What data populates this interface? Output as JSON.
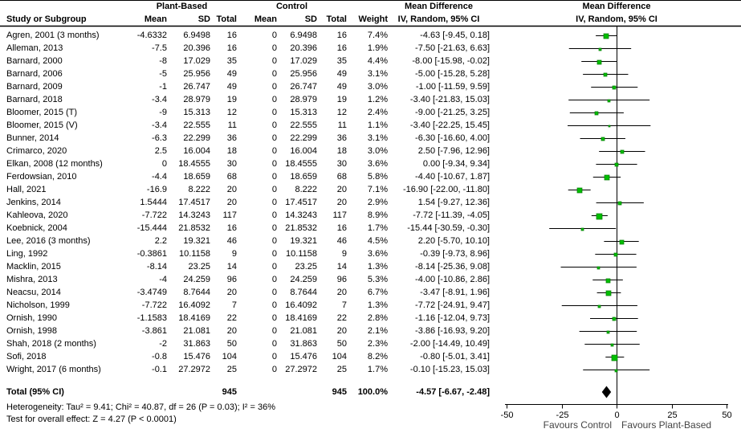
{
  "chart_data": {
    "type": "forest_plot",
    "effect_measure": "Mean Difference",
    "method": "IV, Random, 95% CI",
    "group1": "Plant-Based",
    "group2": "Control",
    "columns": [
      "Study or Subgroup",
      "Mean",
      "SD",
      "Total",
      "Mean",
      "SD",
      "Total",
      "Weight",
      "IV, Random, 95% CI"
    ],
    "studies": [
      {
        "name": "Agren, 2001 (3 months)",
        "mean1": "-4.6332",
        "sd1": "6.9498",
        "total1": "16",
        "mean2": "0",
        "sd2": "6.9498",
        "total2": "16",
        "weight": "7.4%",
        "ci_text": "-4.63 [-9.45, 0.18]",
        "md": -4.63,
        "lo": -9.45,
        "hi": 0.18,
        "weight_pct": 7.4
      },
      {
        "name": "Alleman, 2013",
        "mean1": "-7.5",
        "sd1": "20.396",
        "total1": "16",
        "mean2": "0",
        "sd2": "20.396",
        "total2": "16",
        "weight": "1.9%",
        "ci_text": "-7.50 [-21.63, 6.63]",
        "md": -7.5,
        "lo": -21.63,
        "hi": 6.63,
        "weight_pct": 1.9
      },
      {
        "name": "Barnard, 2000",
        "mean1": "-8",
        "sd1": "17.029",
        "total1": "35",
        "mean2": "0",
        "sd2": "17.029",
        "total2": "35",
        "weight": "4.4%",
        "ci_text": "-8.00 [-15.98, -0.02]",
        "md": -8.0,
        "lo": -15.98,
        "hi": -0.02,
        "weight_pct": 4.4
      },
      {
        "name": "Barnard, 2006",
        "mean1": "-5",
        "sd1": "25.956",
        "total1": "49",
        "mean2": "0",
        "sd2": "25.956",
        "total2": "49",
        "weight": "3.1%",
        "ci_text": "-5.00 [-15.28, 5.28]",
        "md": -5.0,
        "lo": -15.28,
        "hi": 5.28,
        "weight_pct": 3.1
      },
      {
        "name": "Barnard, 2009",
        "mean1": "-1",
        "sd1": "26.747",
        "total1": "49",
        "mean2": "0",
        "sd2": "26.747",
        "total2": "49",
        "weight": "3.0%",
        "ci_text": "-1.00 [-11.59, 9.59]",
        "md": -1.0,
        "lo": -11.59,
        "hi": 9.59,
        "weight_pct": 3.0
      },
      {
        "name": "Barnard, 2018",
        "mean1": "-3.4",
        "sd1": "28.979",
        "total1": "19",
        "mean2": "0",
        "sd2": "28.979",
        "total2": "19",
        "weight": "1.2%",
        "ci_text": "-3.40 [-21.83, 15.03]",
        "md": -3.4,
        "lo": -21.83,
        "hi": 15.03,
        "weight_pct": 1.2
      },
      {
        "name": "Bloomer, 2015 (T)",
        "mean1": "-9",
        "sd1": "15.313",
        "total1": "12",
        "mean2": "0",
        "sd2": "15.313",
        "total2": "12",
        "weight": "2.4%",
        "ci_text": "-9.00 [-21.25, 3.25]",
        "md": -9.0,
        "lo": -21.25,
        "hi": 3.25,
        "weight_pct": 2.4
      },
      {
        "name": "Bloomer, 2015 (V)",
        "mean1": "-3.4",
        "sd1": "22.555",
        "total1": "11",
        "mean2": "0",
        "sd2": "22.555",
        "total2": "11",
        "weight": "1.1%",
        "ci_text": "-3.40 [-22.25, 15.45]",
        "md": -3.4,
        "lo": -22.25,
        "hi": 15.45,
        "weight_pct": 1.1
      },
      {
        "name": "Bunner, 2014",
        "mean1": "-6.3",
        "sd1": "22.299",
        "total1": "36",
        "mean2": "0",
        "sd2": "22.299",
        "total2": "36",
        "weight": "3.1%",
        "ci_text": "-6.30 [-16.60, 4.00]",
        "md": -6.3,
        "lo": -16.6,
        "hi": 4.0,
        "weight_pct": 3.1
      },
      {
        "name": "Crimarco, 2020",
        "mean1": "2.5",
        "sd1": "16.004",
        "total1": "18",
        "mean2": "0",
        "sd2": "16.004",
        "total2": "18",
        "weight": "3.0%",
        "ci_text": "2.50 [-7.96, 12.96]",
        "md": 2.5,
        "lo": -7.96,
        "hi": 12.96,
        "weight_pct": 3.0
      },
      {
        "name": "Elkan, 2008 (12 months)",
        "mean1": "0",
        "sd1": "18.4555",
        "total1": "30",
        "mean2": "0",
        "sd2": "18.4555",
        "total2": "30",
        "weight": "3.6%",
        "ci_text": "0.00 [-9.34, 9.34]",
        "md": 0.0,
        "lo": -9.34,
        "hi": 9.34,
        "weight_pct": 3.6
      },
      {
        "name": "Ferdowsian, 2010",
        "mean1": "-4.4",
        "sd1": "18.659",
        "total1": "68",
        "mean2": "0",
        "sd2": "18.659",
        "total2": "68",
        "weight": "5.8%",
        "ci_text": "-4.40 [-10.67, 1.87]",
        "md": -4.4,
        "lo": -10.67,
        "hi": 1.87,
        "weight_pct": 5.8
      },
      {
        "name": "Hall, 2021",
        "mean1": "-16.9",
        "sd1": "8.222",
        "total1": "20",
        "mean2": "0",
        "sd2": "8.222",
        "total2": "20",
        "weight": "7.1%",
        "ci_text": "-16.90 [-22.00, -11.80]",
        "md": -16.9,
        "lo": -22.0,
        "hi": -11.8,
        "weight_pct": 7.1
      },
      {
        "name": "Jenkins, 2014",
        "mean1": "1.5444",
        "sd1": "17.4517",
        "total1": "20",
        "mean2": "0",
        "sd2": "17.4517",
        "total2": "20",
        "weight": "2.9%",
        "ci_text": "1.54 [-9.27, 12.36]",
        "md": 1.54,
        "lo": -9.27,
        "hi": 12.36,
        "weight_pct": 2.9
      },
      {
        "name": "Kahleova, 2020",
        "mean1": "-7.722",
        "sd1": "14.3243",
        "total1": "117",
        "mean2": "0",
        "sd2": "14.3243",
        "total2": "117",
        "weight": "8.9%",
        "ci_text": "-7.72 [-11.39, -4.05]",
        "md": -7.72,
        "lo": -11.39,
        "hi": -4.05,
        "weight_pct": 8.9
      },
      {
        "name": "Koebnick, 2004",
        "mean1": "-15.444",
        "sd1": "21.8532",
        "total1": "16",
        "mean2": "0",
        "sd2": "21.8532",
        "total2": "16",
        "weight": "1.7%",
        "ci_text": "-15.44 [-30.59, -0.30]",
        "md": -15.44,
        "lo": -30.59,
        "hi": -0.3,
        "weight_pct": 1.7
      },
      {
        "name": "Lee, 2016 (3 months)",
        "mean1": "2.2",
        "sd1": "19.321",
        "total1": "46",
        "mean2": "0",
        "sd2": "19.321",
        "total2": "46",
        "weight": "4.5%",
        "ci_text": "2.20 [-5.70, 10.10]",
        "md": 2.2,
        "lo": -5.7,
        "hi": 10.1,
        "weight_pct": 4.5
      },
      {
        "name": "Ling, 1992",
        "mean1": "-0.3861",
        "sd1": "10.1158",
        "total1": "9",
        "mean2": "0",
        "sd2": "10.1158",
        "total2": "9",
        "weight": "3.6%",
        "ci_text": "-0.39 [-9.73, 8.96]",
        "md": -0.39,
        "lo": -9.73,
        "hi": 8.96,
        "weight_pct": 3.6
      },
      {
        "name": "Macklin, 2015",
        "mean1": "-8.14",
        "sd1": "23.25",
        "total1": "14",
        "mean2": "0",
        "sd2": "23.25",
        "total2": "14",
        "weight": "1.3%",
        "ci_text": "-8.14 [-25.36, 9.08]",
        "md": -8.14,
        "lo": -25.36,
        "hi": 9.08,
        "weight_pct": 1.3
      },
      {
        "name": "Mishra, 2013",
        "mean1": "-4",
        "sd1": "24.259",
        "total1": "96",
        "mean2": "0",
        "sd2": "24.259",
        "total2": "96",
        "weight": "5.3%",
        "ci_text": "-4.00 [-10.86, 2.86]",
        "md": -4.0,
        "lo": -10.86,
        "hi": 2.86,
        "weight_pct": 5.3
      },
      {
        "name": "Neacsu, 2014",
        "mean1": "-3.4749",
        "sd1": "8.7644",
        "total1": "20",
        "mean2": "0",
        "sd2": "8.7644",
        "total2": "20",
        "weight": "6.7%",
        "ci_text": "-3.47 [-8.91, 1.96]",
        "md": -3.47,
        "lo": -8.91,
        "hi": 1.96,
        "weight_pct": 6.7
      },
      {
        "name": "Nicholson, 1999",
        "mean1": "-7.722",
        "sd1": "16.4092",
        "total1": "7",
        "mean2": "0",
        "sd2": "16.4092",
        "total2": "7",
        "weight": "1.3%",
        "ci_text": "-7.72 [-24.91, 9.47]",
        "md": -7.72,
        "lo": -24.91,
        "hi": 9.47,
        "weight_pct": 1.3
      },
      {
        "name": "Ornish, 1990",
        "mean1": "-1.1583",
        "sd1": "18.4169",
        "total1": "22",
        "mean2": "0",
        "sd2": "18.4169",
        "total2": "22",
        "weight": "2.8%",
        "ci_text": "-1.16 [-12.04, 9.73]",
        "md": -1.16,
        "lo": -12.04,
        "hi": 9.73,
        "weight_pct": 2.8
      },
      {
        "name": "Ornish, 1998",
        "mean1": "-3.861",
        "sd1": "21.081",
        "total1": "20",
        "mean2": "0",
        "sd2": "21.081",
        "total2": "20",
        "weight": "2.1%",
        "ci_text": "-3.86 [-16.93, 9.20]",
        "md": -3.86,
        "lo": -16.93,
        "hi": 9.2,
        "weight_pct": 2.1
      },
      {
        "name": "Shah, 2018 (2 months)",
        "mean1": "-2",
        "sd1": "31.863",
        "total1": "50",
        "mean2": "0",
        "sd2": "31.863",
        "total2": "50",
        "weight": "2.3%",
        "ci_text": "-2.00 [-14.49, 10.49]",
        "md": -2.0,
        "lo": -14.49,
        "hi": 10.49,
        "weight_pct": 2.3
      },
      {
        "name": "Sofi, 2018",
        "mean1": "-0.8",
        "sd1": "15.476",
        "total1": "104",
        "mean2": "0",
        "sd2": "15.476",
        "total2": "104",
        "weight": "8.2%",
        "ci_text": "-0.80 [-5.01, 3.41]",
        "md": -0.8,
        "lo": -5.01,
        "hi": 3.41,
        "weight_pct": 8.2
      },
      {
        "name": "Wright, 2017 (6 months)",
        "mean1": "-0.1",
        "sd1": "27.2972",
        "total1": "25",
        "mean2": "0",
        "sd2": "27.2972",
        "total2": "25",
        "weight": "1.7%",
        "ci_text": "-0.10 [-15.23, 15.03]",
        "md": -0.1,
        "lo": -15.23,
        "hi": 15.03,
        "weight_pct": 1.7
      }
    ],
    "total_row": {
      "name": "Total (95% CI)",
      "total1": "945",
      "total2": "945",
      "weight": "100.0%",
      "ci_text": "-4.57 [-6.67, -2.48]",
      "md": -4.57,
      "lo": -6.67,
      "hi": -2.48
    },
    "heterogeneity": "Heterogeneity: Tau² = 9.41; Chi² = 40.87, df = 26 (P = 0.03); I² = 36%",
    "overall_effect": "Test for overall effect: Z = 4.27 (P < 0.0001)",
    "axis": {
      "min": -50,
      "max": 50,
      "ticks": [
        "-50",
        "-25",
        "0",
        "25",
        "50"
      ],
      "tick_values": [
        -50,
        -25,
        0,
        25,
        50
      ],
      "favours_left": "Favours Control",
      "favours_right": "Favours Plant-Based"
    },
    "colors": {
      "marker_fill": "#00bf00",
      "marker_stroke": "#067d06",
      "diamond": "#000000",
      "line": "#000000"
    }
  }
}
